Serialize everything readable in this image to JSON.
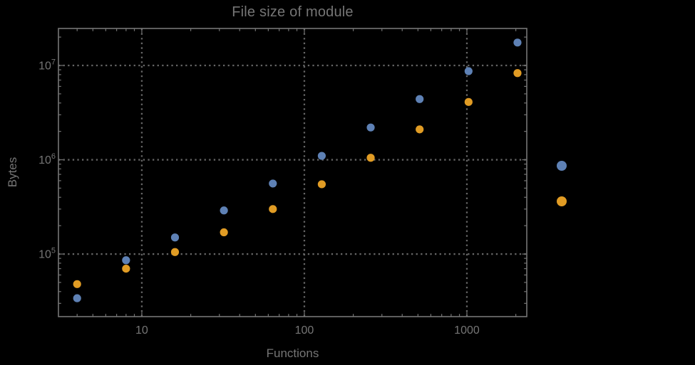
{
  "chart_data": {
    "type": "scatter",
    "title": "File size of module",
    "xlabel": "Functions",
    "ylabel": "Bytes",
    "xscale": "log",
    "yscale": "log",
    "xlim": [
      3.07,
      2336
    ],
    "ylim": [
      21700,
      24690000
    ],
    "grid": "dotted-at-decades",
    "x": [
      4,
      8,
      16,
      32,
      64,
      128,
      256,
      512,
      1024,
      2048
    ],
    "series": [
      {
        "name": "series-blue",
        "color": "#5e81b5",
        "values": [
          34000,
          86000,
          150000,
          290000,
          560000,
          1100000,
          2200000,
          4400000,
          8700000,
          17500000
        ]
      },
      {
        "name": "series-orange",
        "color": "#e19c24",
        "values": [
          48000,
          70000,
          105000,
          170000,
          300000,
          550000,
          1050000,
          2100000,
          4100000,
          8300000
        ]
      }
    ],
    "x_ticks": [
      {
        "value": 10,
        "label": "10"
      },
      {
        "value": 100,
        "label": "100"
      },
      {
        "value": 1000,
        "label": "1000"
      }
    ],
    "y_ticks": [
      {
        "value": 100000,
        "base": "10",
        "exp": "5"
      },
      {
        "value": 1000000,
        "base": "10",
        "exp": "6"
      },
      {
        "value": 10000000,
        "base": "10",
        "exp": "7"
      }
    ],
    "legend": {
      "position": "right-of-frame",
      "entries": [
        {
          "marker_color": "#5e81b5",
          "label": ""
        },
        {
          "marker_color": "#e19c24",
          "label": ""
        }
      ]
    }
  },
  "colors": {
    "background": "#000000",
    "text": "#757575",
    "frame": "#757575",
    "grid": "#656565"
  }
}
